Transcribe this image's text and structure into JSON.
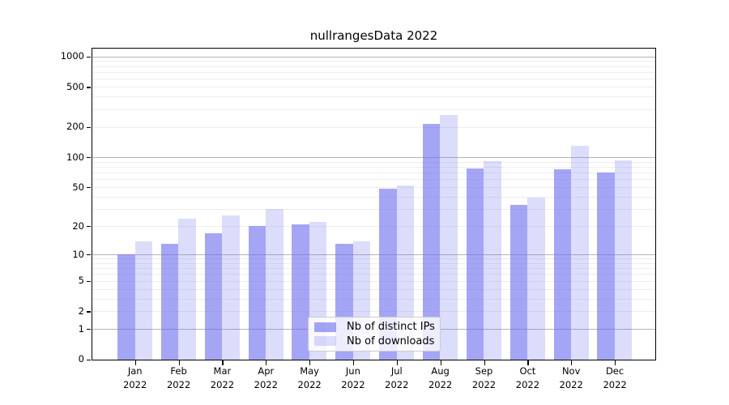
{
  "chart_data": {
    "type": "bar",
    "title": "nullrangesData 2022",
    "categories": [
      "Jan",
      "Feb",
      "Mar",
      "Apr",
      "May",
      "Jun",
      "Jul",
      "Aug",
      "Sep",
      "Oct",
      "Nov",
      "Dec"
    ],
    "category_year": "2022",
    "series": [
      {
        "name": "Nb of distinct IPs",
        "color": "rgba(110,110,240,0.62)",
        "values": [
          10,
          13,
          17,
          20,
          21,
          13,
          48,
          215,
          78,
          33,
          76,
          70
        ]
      },
      {
        "name": "Nb of downloads",
        "color": "rgba(110,110,240,0.24)",
        "values": [
          14,
          24,
          26,
          30,
          22,
          14,
          52,
          265,
          92,
          39,
          131,
          94
        ]
      }
    ],
    "y_axis": {
      "scale": "log1p",
      "tick_values": [
        0,
        1,
        2,
        5,
        10,
        20,
        50,
        100,
        200,
        500,
        1000
      ],
      "tick_labels": [
        "0",
        "1",
        "2",
        "5",
        "10",
        "20",
        "50",
        "100",
        "200",
        "500",
        "1000"
      ],
      "major_grid_values": [
        1,
        10,
        100,
        1000
      ],
      "minor_grid_values": [
        2,
        3,
        4,
        5,
        6,
        7,
        8,
        9,
        20,
        30,
        40,
        50,
        60,
        70,
        80,
        90,
        200,
        300,
        400,
        500,
        600,
        700,
        800,
        900
      ],
      "ylim": [
        0,
        1200
      ]
    },
    "grid": true,
    "legend_position": "bottom-center",
    "colors": {
      "bar_base": "#6e6ef0",
      "major_grid": "#b4b4b4",
      "minor_grid": "#ededed",
      "axis": "#000000"
    }
  }
}
